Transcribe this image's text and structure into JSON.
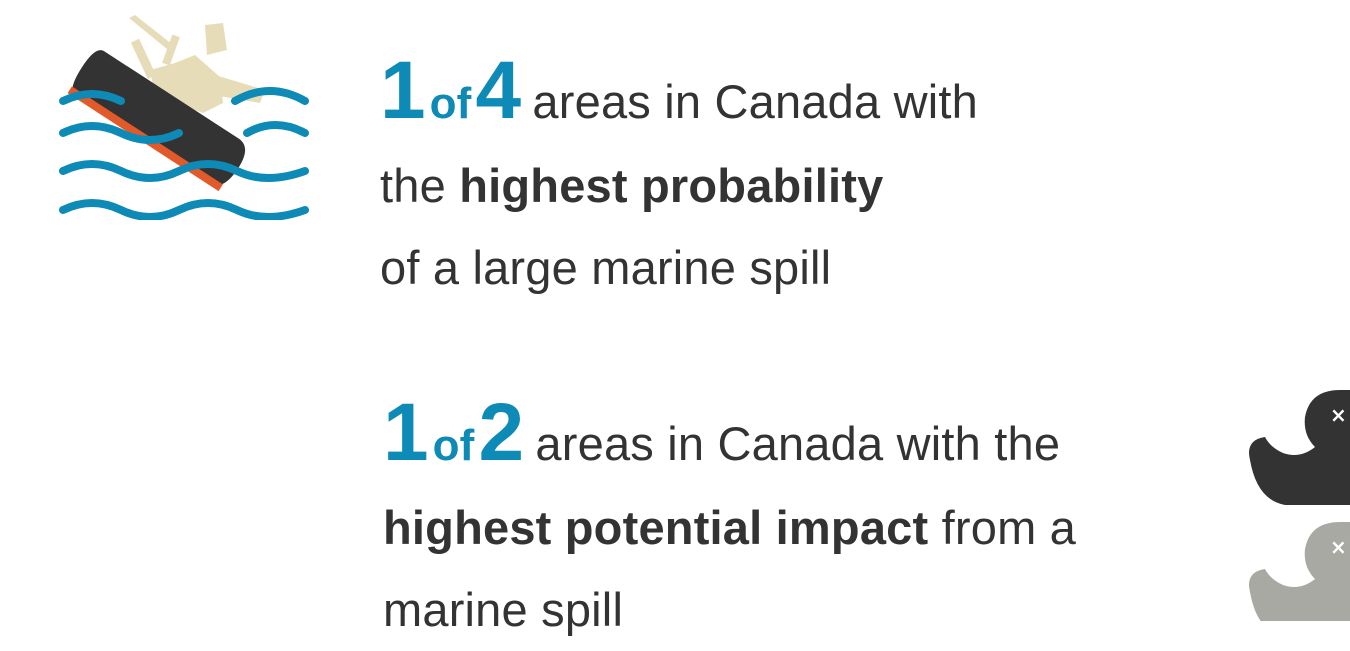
{
  "stat1": {
    "numerator": "1",
    "of": "of",
    "denominator": "4",
    "line1_rest": "areas in Canada with",
    "line2_pre": "the",
    "line2_bold": "highest probability",
    "line3": "of a large marine spill"
  },
  "stat2": {
    "numerator": "1",
    "of": "of",
    "denominator": "2",
    "line1_rest": "areas in Canada with the",
    "line2_bold": "highest potential impact",
    "line2_post": "from a",
    "line3": "marine spill"
  },
  "colors": {
    "accent": "#0e8ab7",
    "text": "#333333",
    "hull": "#333333",
    "hull_stripe": "#e35a2a",
    "superstructure": "#e6dcb8",
    "duck_dark": "#333333",
    "duck_light": "#a9a9a4"
  },
  "icons": [
    "sinking-ship-icon",
    "dead-duck-icon"
  ]
}
